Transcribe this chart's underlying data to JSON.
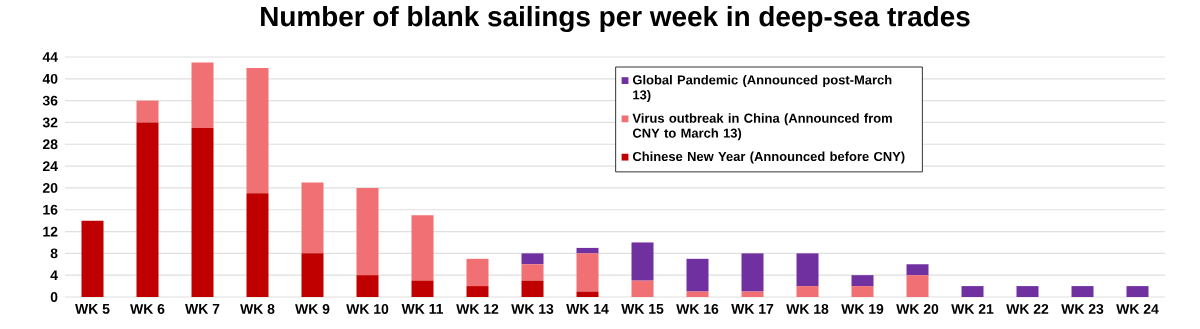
{
  "chart_data": {
    "type": "bar",
    "title": "Number of blank sailings per week in deep-sea trades",
    "categories": [
      "WK 5",
      "WK 6",
      "WK 7",
      "WK 8",
      "WK 9",
      "WK 10",
      "WK 11",
      "WK 12",
      "WK 13",
      "WK 14",
      "WK 15",
      "WK 16",
      "WK 17",
      "WK 18",
      "WK 19",
      "WK 20",
      "WK 21",
      "WK 22",
      "WK 23",
      "WK 24"
    ],
    "stacked": true,
    "series": [
      {
        "name": "Chinese New Year (Announced before CNY)",
        "color": "#c00000",
        "values": [
          14,
          32,
          31,
          19,
          8,
          4,
          3,
          2,
          3,
          1,
          0,
          0,
          0,
          0,
          0,
          0,
          0,
          0,
          0,
          0
        ]
      },
      {
        "name": "Virus outbreak in China (Announced from CNY to March 13)",
        "color": "#f07074",
        "values": [
          0,
          4,
          12,
          23,
          13,
          16,
          12,
          5,
          3,
          7,
          3,
          1,
          1,
          2,
          2,
          4,
          0,
          0,
          0,
          0
        ]
      },
      {
        "name": "Global Pandemic (Announced post-March 13)",
        "color": "#7030a0",
        "values": [
          0,
          0,
          0,
          0,
          0,
          0,
          0,
          0,
          2,
          1,
          7,
          6,
          7,
          6,
          2,
          2,
          2,
          2,
          2,
          2
        ]
      }
    ],
    "ylim": [
      0,
      44
    ],
    "yticks": [
      0,
      4,
      8,
      12,
      16,
      20,
      24,
      28,
      32,
      36,
      40,
      44
    ],
    "grid": "y",
    "legend": "top"
  }
}
